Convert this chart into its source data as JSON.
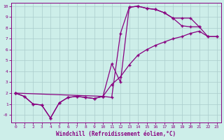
{
  "bg_color": "#cdeee9",
  "line_color": "#880080",
  "grid_color": "#aacccc",
  "xlabel": "Windchill (Refroidissement éolien,°C)",
  "xlim": [
    -0.5,
    23.5
  ],
  "ylim": [
    -0.7,
    10.3
  ],
  "xticks": [
    0,
    1,
    2,
    3,
    4,
    5,
    6,
    7,
    8,
    9,
    10,
    11,
    12,
    13,
    14,
    15,
    16,
    17,
    18,
    19,
    20,
    21,
    22,
    23
  ],
  "yticks": [
    0,
    1,
    2,
    3,
    4,
    5,
    6,
    7,
    8,
    9,
    10
  ],
  "ytick_labels": [
    "-0",
    "1",
    "2",
    "3",
    "4",
    "5",
    "6",
    "7",
    "8",
    "9",
    "10"
  ],
  "series": [
    {
      "x": [
        0,
        1,
        2,
        3,
        4,
        5,
        6,
        7,
        8,
        9,
        10,
        11,
        12,
        13,
        14,
        15,
        16,
        17,
        18,
        19,
        20,
        21
      ],
      "y": [
        2,
        1.7,
        1.0,
        0.9,
        -0.3,
        1.1,
        1.6,
        1.7,
        1.6,
        1.5,
        1.7,
        1.6,
        7.5,
        9.9,
        10.0,
        9.8,
        9.7,
        9.4,
        8.9,
        8.2,
        8.1,
        8.1
      ]
    },
    {
      "x": [
        0,
        10,
        11,
        12,
        13,
        14,
        15,
        16,
        17,
        18,
        19,
        20,
        21,
        22,
        23
      ],
      "y": [
        2,
        1.7,
        2.8,
        3.5,
        4.6,
        5.5,
        6.0,
        6.4,
        6.7,
        7.0,
        7.2,
        7.5,
        7.7,
        7.2,
        7.2
      ]
    },
    {
      "x": [
        0,
        1,
        2,
        3,
        4,
        5,
        6,
        7,
        8,
        9,
        10,
        11,
        12,
        13,
        14,
        15,
        16,
        17,
        18,
        19,
        20,
        21,
        22,
        23
      ],
      "y": [
        2,
        1.7,
        1.0,
        0.9,
        -0.3,
        1.1,
        1.6,
        1.7,
        1.6,
        1.5,
        1.7,
        4.7,
        3.0,
        9.9,
        10.0,
        9.8,
        9.7,
        9.4,
        8.9,
        8.9,
        8.9,
        8.1,
        7.2,
        7.2
      ]
    }
  ]
}
